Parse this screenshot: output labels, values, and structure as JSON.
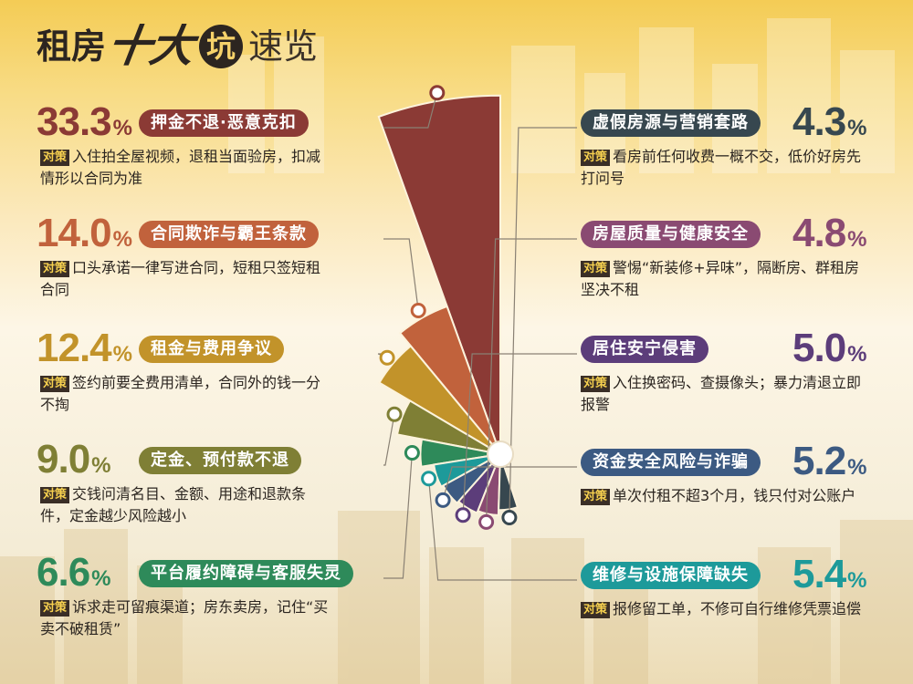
{
  "title": {
    "part1": "租房",
    "part2": "十大",
    "part3": "坑",
    "part4": "速览"
  },
  "tag_label": "对策",
  "colors": {
    "background": "#f8dc86",
    "text": "#2b2520",
    "tag_bg": "#3a2e26",
    "tag_fg": "#f6d04f"
  },
  "chart_data": {
    "type": "pie",
    "variant": "rose / polar-area (slice radius encodes the value)",
    "unit": "%",
    "items": [
      {
        "label": "押金不退·恶意克扣",
        "value": 33.3,
        "color": "#8b3a35",
        "advice": "入住拍全屋视频，退租当面验房，扣减情形以合同为准"
      },
      {
        "label": "合同欺诈与霸王条款",
        "value": 14.0,
        "color": "#c1623c",
        "advice": "口头承诺一律写进合同，短租只签短租合同"
      },
      {
        "label": "租金与费用争议",
        "value": 12.4,
        "color": "#c2932a",
        "advice": "签约前要全费用清单，合同外的钱一分不掏"
      },
      {
        "label": "定金、预付款不退",
        "value": 9.0,
        "color": "#7f7f35",
        "advice": "交钱问清名目、金额、用途和退款条件，定金越少风险越小"
      },
      {
        "label": "平台履约障碍与客服失灵",
        "value": 6.6,
        "color": "#2e8a5a",
        "advice": "诉求走可留痕渠道；房东卖房，记住“买卖不破租赁”"
      },
      {
        "label": "维修与设施保障缺失",
        "value": 5.4,
        "color": "#1d9a9a",
        "advice": "报修留工单，不修可自行维修凭票追偿"
      },
      {
        "label": "资金安全风险与诈骗",
        "value": 5.2,
        "color": "#3c5a82",
        "advice": "单次付租不超3个月，钱只付对公账户"
      },
      {
        "label": "居住安宁侵害",
        "value": 5.0,
        "color": "#5c3d7a",
        "advice": "入住换密码、查摄像头；暴力清退立即报警"
      },
      {
        "label": "房屋质量与健康安全",
        "value": 4.8,
        "color": "#8a4a72",
        "advice": "警惕“新装修+异味”，隔断房、群租房坚决不租"
      },
      {
        "label": "虚假房源与营销套路",
        "value": 4.3,
        "color": "#37474f",
        "advice": "看房前任何收费一概不交，低价好房先打问号"
      }
    ]
  }
}
